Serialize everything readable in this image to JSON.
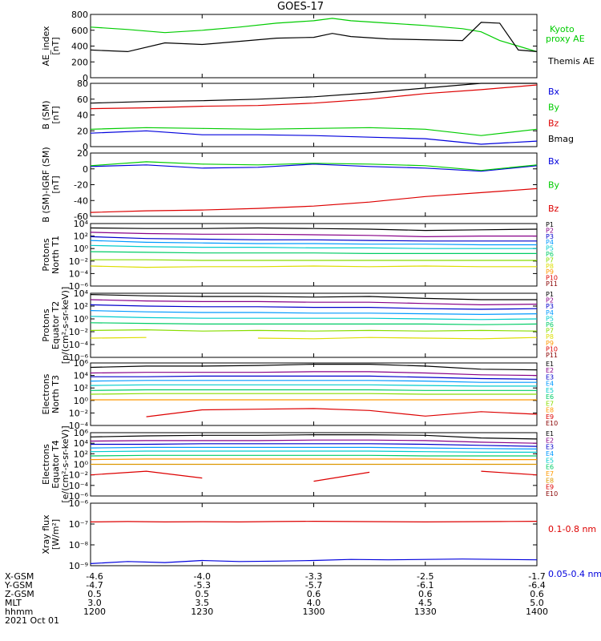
{
  "title": "GOES-17",
  "chart_data": [
    {
      "type": "line",
      "ylabel": [
        "AE_index",
        "[nT]"
      ],
      "yticks": [
        "800",
        "600",
        "400",
        "200",
        "0"
      ],
      "ylim": [
        0,
        800
      ],
      "x": [
        1200,
        1210,
        1220,
        1230,
        1240,
        1250,
        1300,
        1305,
        1310,
        1320,
        1330,
        1340,
        1345,
        1350,
        1355,
        1400
      ],
      "series": [
        {
          "name": "Kyoto proxy AE",
          "color": "#00cc00",
          "values": [
            640,
            610,
            570,
            600,
            640,
            690,
            720,
            750,
            720,
            690,
            660,
            620,
            580,
            470,
            400,
            330
          ]
        },
        {
          "name": "Themis AE",
          "color": "#000000",
          "values": [
            350,
            330,
            440,
            420,
            460,
            500,
            510,
            560,
            520,
            490,
            480,
            470,
            700,
            690,
            350,
            330
          ]
        }
      ]
    },
    {
      "type": "line",
      "ylabel": [
        "B (SM)",
        "[nT]"
      ],
      "yticks": [
        "80",
        "60",
        "40",
        "20",
        "0"
      ],
      "ylim": [
        0,
        80
      ],
      "x": [
        1200,
        1215,
        1230,
        1245,
        1300,
        1315,
        1330,
        1345,
        1400
      ],
      "series": [
        {
          "name": "Bx",
          "color": "#0000dd",
          "values": [
            17,
            20,
            15,
            15,
            14,
            12,
            10,
            3,
            7
          ]
        },
        {
          "name": "By",
          "color": "#00cc00",
          "values": [
            22,
            24,
            23,
            22,
            23,
            24,
            22,
            14,
            22
          ]
        },
        {
          "name": "Bz",
          "color": "#dd0000",
          "values": [
            48,
            49,
            51,
            52,
            55,
            60,
            67,
            72,
            78
          ]
        },
        {
          "name": "Bmag",
          "color": "#000000",
          "values": [
            55,
            57,
            58,
            60,
            63,
            68,
            74,
            80,
            82
          ]
        }
      ]
    },
    {
      "type": "line",
      "ylabel": [
        "B (SM)-IGRF (SM)",
        "[nT]"
      ],
      "yticks": [
        "20",
        "0",
        "-20",
        "-40",
        "-60"
      ],
      "ylim": [
        -60,
        20
      ],
      "x": [
        1200,
        1215,
        1230,
        1245,
        1300,
        1315,
        1330,
        1345,
        1400
      ],
      "series": [
        {
          "name": "Bx",
          "color": "#0000dd",
          "values": [
            3,
            5,
            1,
            2,
            6,
            3,
            1,
            -3,
            4
          ]
        },
        {
          "name": "By",
          "color": "#00cc00",
          "values": [
            4,
            9,
            6,
            5,
            7,
            6,
            4,
            -2,
            5
          ]
        },
        {
          "name": "Bz",
          "color": "#dd0000",
          "values": [
            -55,
            -53,
            -52,
            -50,
            -47,
            -42,
            -35,
            -30,
            -25
          ]
        }
      ]
    },
    {
      "type": "line",
      "ylabel": [
        "Protons",
        "North T1"
      ],
      "yticks": [
        "10⁴",
        "10²",
        "10⁰",
        "10⁻²",
        "10⁻⁴",
        "10⁻⁶"
      ],
      "ylim": [
        -6,
        4
      ],
      "log": true,
      "x": [
        1200,
        1215,
        1230,
        1245,
        1300,
        1315,
        1330,
        1345,
        1400
      ],
      "series": [
        {
          "name": "P1",
          "color": "#000000",
          "values": [
            3.3,
            3.2,
            3.2,
            3.3,
            3.2,
            3.1,
            2.9,
            3.0,
            3.1
          ]
        },
        {
          "name": "P2",
          "color": "#880088",
          "values": [
            2.6,
            2.4,
            2.3,
            2.3,
            2.2,
            2.1,
            1.9,
            2.0,
            2.0
          ]
        },
        {
          "name": "P3",
          "color": "#0000cc",
          "values": [
            1.9,
            1.6,
            1.5,
            1.4,
            1.4,
            1.3,
            1.2,
            1.2,
            1.2
          ]
        },
        {
          "name": "P4",
          "color": "#0099ff",
          "values": [
            1.3,
            1.0,
            0.9,
            0.8,
            0.8,
            0.7,
            0.7,
            0.6,
            0.6
          ]
        },
        {
          "name": "P5",
          "color": "#00cccc",
          "values": [
            0.5,
            0.3,
            0.2,
            0.2,
            0.1,
            0.1,
            0.0,
            0.0,
            0.0
          ]
        },
        {
          "name": "P6",
          "color": "#00cc66",
          "values": [
            -0.5,
            -0.6,
            -0.7,
            -0.7,
            -0.7,
            -0.8,
            -0.8,
            -0.8,
            -0.8
          ]
        },
        {
          "name": "P7",
          "color": "#88dd00",
          "values": [
            -1.8,
            -1.8,
            -1.9,
            -1.9,
            -1.9,
            -1.9,
            -1.9,
            -1.9,
            -1.9
          ]
        },
        {
          "name": "P8",
          "color": "#dddd00",
          "values": [
            -2.8,
            -3.0,
            -2.9,
            -2.9,
            -2.8,
            -2.9,
            -2.8,
            -2.9,
            -2.9
          ]
        },
        {
          "name": "P9",
          "color": "#ff9900",
          "values": [
            null,
            null,
            null,
            null,
            null,
            null,
            null,
            null,
            null
          ]
        },
        {
          "name": "P10",
          "color": "#dd0000",
          "values": [
            null,
            null,
            null,
            null,
            null,
            null,
            null,
            null,
            null
          ]
        },
        {
          "name": "P11",
          "color": "#880000",
          "values": [
            null,
            null,
            null,
            null,
            null,
            null,
            null,
            null,
            null
          ]
        }
      ]
    },
    {
      "type": "line",
      "ylabel": [
        "Protons",
        "Equator T2",
        "[p/(cm²-s-sr-keV)]"
      ],
      "yticks": [
        "10⁴",
        "10²",
        "10⁰",
        "10⁻²",
        "10⁻⁴",
        "10⁻⁶"
      ],
      "ylim": [
        -6,
        4
      ],
      "log": true,
      "x": [
        1200,
        1215,
        1230,
        1245,
        1300,
        1315,
        1330,
        1345,
        1400
      ],
      "series": [
        {
          "name": "P1",
          "color": "#000000",
          "values": [
            3.8,
            3.6,
            3.5,
            3.5,
            3.4,
            3.5,
            3.2,
            3.0,
            3.0
          ]
        },
        {
          "name": "P2",
          "color": "#880088",
          "values": [
            3.0,
            2.8,
            2.7,
            2.7,
            2.6,
            2.6,
            2.4,
            2.2,
            2.3
          ]
        },
        {
          "name": "P3",
          "color": "#0000cc",
          "values": [
            2.2,
            2.0,
            1.9,
            1.9,
            1.8,
            1.8,
            1.6,
            1.5,
            1.6
          ]
        },
        {
          "name": "P4",
          "color": "#0099ff",
          "values": [
            1.3,
            1.1,
            1.0,
            1.0,
            0.9,
            0.9,
            0.8,
            0.7,
            0.8
          ]
        },
        {
          "name": "P5",
          "color": "#00cccc",
          "values": [
            0.4,
            0.2,
            0.1,
            0.1,
            0.1,
            0.1,
            0.0,
            -0.1,
            0.0
          ]
        },
        {
          "name": "P6",
          "color": "#00cc66",
          "values": [
            -0.6,
            -0.7,
            -0.8,
            -0.8,
            -0.8,
            -0.8,
            -0.8,
            -0.9,
            -0.8
          ]
        },
        {
          "name": "P7",
          "color": "#88dd00",
          "values": [
            -1.8,
            -1.7,
            -1.9,
            -1.8,
            -1.9,
            -1.8,
            -1.9,
            -1.8,
            -1.9
          ]
        },
        {
          "name": "P8",
          "color": "#dddd00",
          "values": [
            -3.0,
            -2.9,
            null,
            -3.0,
            -3.1,
            -2.9,
            -3.0,
            -3.1,
            -2.9
          ]
        },
        {
          "name": "P9",
          "color": "#ff9900",
          "values": [
            null,
            null,
            null,
            null,
            null,
            null,
            null,
            null,
            null
          ]
        },
        {
          "name": "P10",
          "color": "#dd0000",
          "values": [
            null,
            null,
            null,
            null,
            null,
            null,
            null,
            null,
            -5.2
          ]
        },
        {
          "name": "P11",
          "color": "#880000",
          "values": [
            null,
            null,
            null,
            null,
            null,
            null,
            null,
            null,
            null
          ]
        }
      ]
    },
    {
      "type": "line",
      "ylabel": [
        "Electrons",
        "North T3"
      ],
      "yticks": [
        "10⁶",
        "10⁴",
        "10²",
        "10⁰",
        "10⁻²",
        "10⁻⁴"
      ],
      "ylim": [
        -4,
        6
      ],
      "log": true,
      "x": [
        1200,
        1215,
        1230,
        1245,
        1300,
        1315,
        1330,
        1345,
        1400
      ],
      "series": [
        {
          "name": "E1",
          "color": "#000000",
          "values": [
            5.3,
            5.5,
            5.5,
            5.6,
            5.8,
            5.8,
            5.5,
            5.0,
            4.9
          ]
        },
        {
          "name": "E2",
          "color": "#880088",
          "values": [
            4.4,
            4.5,
            4.5,
            4.5,
            4.6,
            4.6,
            4.4,
            4.1,
            4.0
          ]
        },
        {
          "name": "E3",
          "color": "#0000cc",
          "values": [
            3.8,
            3.8,
            3.9,
            3.9,
            3.9,
            3.9,
            3.7,
            3.5,
            3.4
          ]
        },
        {
          "name": "E4",
          "color": "#0099ff",
          "values": [
            3.1,
            3.2,
            3.2,
            3.2,
            3.2,
            3.2,
            3.1,
            2.9,
            2.9
          ]
        },
        {
          "name": "E5",
          "color": "#00cccc",
          "values": [
            2.4,
            2.5,
            2.5,
            2.5,
            2.5,
            2.5,
            2.4,
            2.3,
            2.3
          ]
        },
        {
          "name": "E6",
          "color": "#00cc66",
          "values": [
            1.6,
            1.7,
            1.7,
            1.7,
            1.7,
            1.7,
            1.6,
            1.6,
            1.6
          ]
        },
        {
          "name": "E7",
          "color": "#88dd00",
          "values": [
            1.0,
            1.1,
            1.1,
            1.1,
            1.1,
            1.1,
            1.0,
            1.0,
            1.0
          ]
        },
        {
          "name": "E8",
          "color": "#ff9900",
          "values": [
            0.1,
            0.1,
            0.1,
            0.1,
            0.1,
            0.1,
            0.1,
            0.1,
            0.1
          ]
        },
        {
          "name": "E9",
          "color": "#dd0000",
          "values": [
            null,
            -2.6,
            -1.5,
            -1.4,
            -1.3,
            -1.6,
            -2.5,
            -1.8,
            -2.2
          ]
        },
        {
          "name": "E10",
          "color": "#880000",
          "values": [
            null,
            null,
            null,
            null,
            null,
            null,
            null,
            null,
            null
          ]
        }
      ]
    },
    {
      "type": "line",
      "ylabel": [
        "Electrons",
        "Equator T4",
        "[e/(cm²-s-sr-keV)]"
      ],
      "yticks": [
        "10⁶",
        "10⁴",
        "10²",
        "10⁰",
        "10⁻²",
        "10⁻⁴",
        "10⁻⁶"
      ],
      "ylim": [
        -6,
        6
      ],
      "log": true,
      "x": [
        1200,
        1215,
        1230,
        1245,
        1300,
        1315,
        1330,
        1345,
        1400
      ],
      "series": [
        {
          "name": "E1",
          "color": "#000000",
          "values": [
            5.2,
            5.4,
            5.5,
            5.5,
            5.6,
            5.6,
            5.5,
            5.0,
            4.8
          ]
        },
        {
          "name": "E2",
          "color": "#880088",
          "values": [
            4.4,
            4.5,
            4.5,
            4.5,
            4.6,
            4.6,
            4.5,
            4.2,
            4.0
          ]
        },
        {
          "name": "E3",
          "color": "#0000cc",
          "values": [
            3.8,
            3.8,
            3.9,
            3.9,
            3.9,
            3.9,
            3.8,
            3.6,
            3.4
          ]
        },
        {
          "name": "E4",
          "color": "#0099ff",
          "values": [
            3.1,
            3.2,
            3.2,
            3.2,
            3.2,
            3.2,
            3.1,
            3.0,
            2.9
          ]
        },
        {
          "name": "E5",
          "color": "#00cccc",
          "values": [
            2.4,
            2.5,
            2.5,
            2.5,
            2.5,
            2.5,
            2.4,
            2.3,
            2.3
          ]
        },
        {
          "name": "E6",
          "color": "#00cc66",
          "values": [
            1.6,
            1.7,
            1.7,
            1.7,
            1.7,
            1.7,
            1.6,
            1.6,
            1.6
          ]
        },
        {
          "name": "E7",
          "color": "#ff9900",
          "values": [
            0.9,
            1.0,
            1.0,
            1.0,
            1.0,
            1.0,
            1.0,
            0.9,
            0.9
          ]
        },
        {
          "name": "E8",
          "color": "#dd9900",
          "values": [
            0.0,
            0.0,
            0.0,
            0.0,
            0.0,
            0.0,
            0.0,
            0.0,
            0.0
          ]
        },
        {
          "name": "E9",
          "color": "#dd0000",
          "values": [
            -2.0,
            -1.3,
            -2.6,
            null,
            -3.2,
            -1.5,
            null,
            -1.3,
            -2.0
          ]
        },
        {
          "name": "E10",
          "color": "#880000",
          "values": [
            null,
            null,
            null,
            null,
            null,
            null,
            null,
            null,
            null
          ]
        }
      ]
    },
    {
      "type": "line",
      "ylabel": [
        "Xray flux",
        "[W/m²]"
      ],
      "yticks": [
        "10⁻⁶",
        "10⁻⁷",
        "10⁻⁸",
        "10⁻⁹"
      ],
      "ylim": [
        -9,
        -6
      ],
      "log": true,
      "x": [
        1200,
        1210,
        1220,
        1230,
        1240,
        1250,
        1300,
        1310,
        1320,
        1330,
        1340,
        1350,
        1400
      ],
      "series": [
        {
          "name": "0.1-0.8 nm",
          "color": "#dd0000",
          "values": [
            -6.9,
            -6.88,
            -6.9,
            -6.89,
            -6.9,
            -6.88,
            -6.87,
            -6.88,
            -6.89,
            -6.9,
            -6.89,
            -6.88,
            -6.87
          ]
        },
        {
          "name": "0.05-0.4 nm",
          "color": "#0000dd",
          "values": [
            -8.9,
            -8.8,
            -8.85,
            -8.75,
            -8.8,
            -8.78,
            -8.75,
            -8.7,
            -8.72,
            -8.7,
            -8.68,
            -8.7,
            -8.72
          ]
        }
      ]
    }
  ],
  "xaxis": {
    "tick_values": [
      1200,
      1230,
      1300,
      1330,
      1400
    ],
    "rows": [
      {
        "label": "X-GSM",
        "values": [
          "-4.6",
          "-4.0",
          "-3.3",
          "-2.5",
          "-1.7"
        ]
      },
      {
        "label": "Y-GSM",
        "values": [
          "-4.7",
          "-5.3",
          "-5.7",
          "-6.1",
          "-6.4"
        ]
      },
      {
        "label": "Z-GSM",
        "values": [
          "0.5",
          "0.5",
          "0.6",
          "0.6",
          "0.6"
        ]
      },
      {
        "label": "MLT",
        "values": [
          "3.0",
          "3.5",
          "4.0",
          "4.5",
          "5.0"
        ]
      },
      {
        "label": "hhmm",
        "values": [
          "1200",
          "1230",
          "1300",
          "1330",
          "1400"
        ]
      }
    ],
    "date": "2021 Oct 01"
  }
}
